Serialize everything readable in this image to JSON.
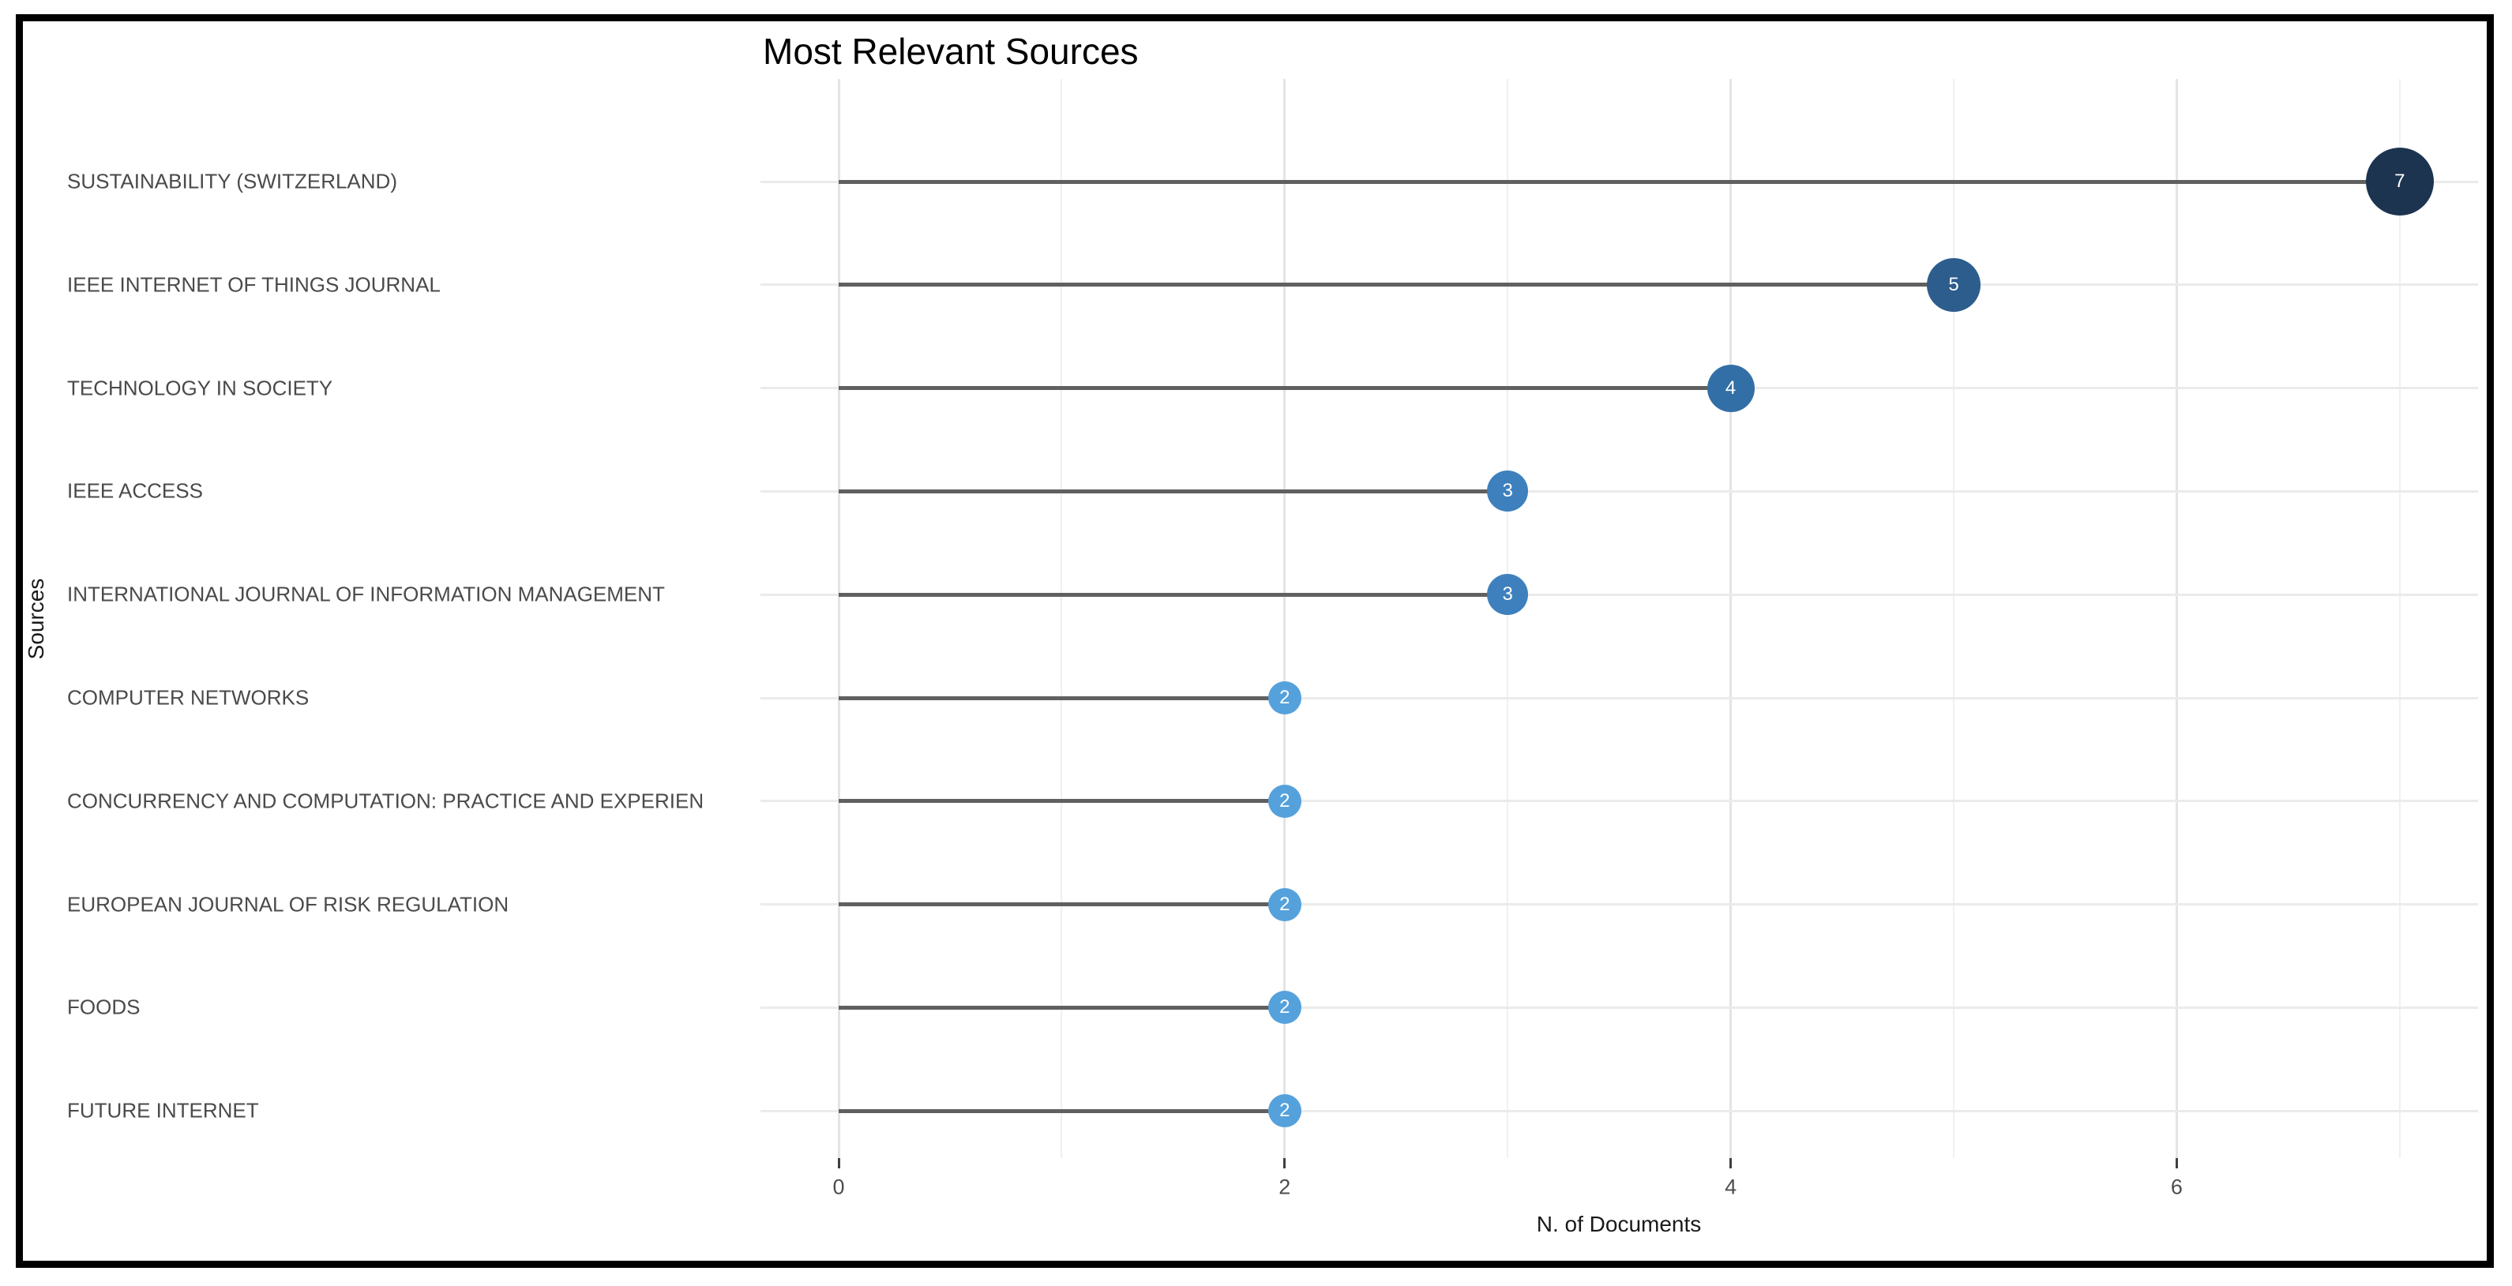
{
  "chart_data": {
    "type": "lollipop",
    "title": "Most Relevant Sources",
    "xlabel": "N. of Documents",
    "ylabel": "Sources",
    "categories": [
      "SUSTAINABILITY (SWITZERLAND)",
      "IEEE INTERNET OF THINGS JOURNAL",
      "TECHNOLOGY IN SOCIETY",
      "IEEE ACCESS",
      "INTERNATIONAL JOURNAL OF INFORMATION MANAGEMENT",
      "COMPUTER NETWORKS",
      "CONCURRENCY AND COMPUTATION: PRACTICE AND EXPERIEN",
      "EUROPEAN JOURNAL OF RISK REGULATION",
      "FOODS",
      "FUTURE INTERNET"
    ],
    "values": [
      7,
      5,
      4,
      3,
      3,
      2,
      2,
      2,
      2,
      2
    ],
    "point_labels": [
      "7",
      "5",
      "4",
      "3",
      "3",
      "2",
      "2",
      "2",
      "2",
      "2"
    ],
    "xticks": [
      0,
      2,
      4,
      6
    ],
    "xticks_minor": [
      1,
      3,
      5,
      7
    ],
    "xlim": [
      -0.35,
      7.35
    ],
    "grid": "on",
    "legend": "none",
    "colors": {
      "value_2": "#55a1dc",
      "value_3": "#3e80bd",
      "value_4": "#326fa6",
      "value_5": "#2c5d8c",
      "value_7": "#1c3450",
      "stem": "#606060",
      "point_label_text": "#ffffff",
      "frame_border": "#000000"
    }
  }
}
